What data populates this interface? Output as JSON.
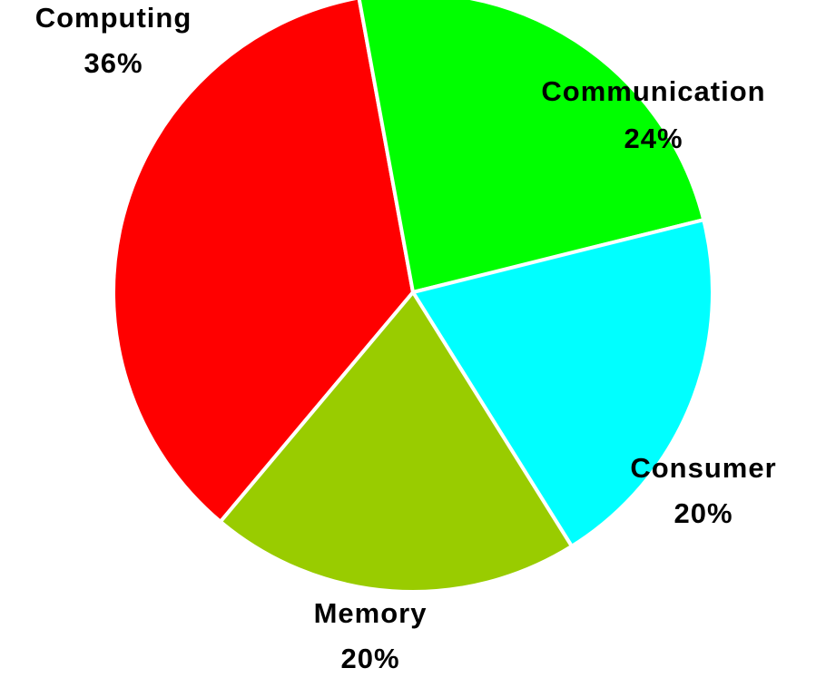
{
  "chart_data": {
    "type": "pie",
    "categories": [
      "Computing",
      "Communication",
      "Consumer",
      "Memory"
    ],
    "values": [
      36,
      24,
      20,
      20
    ],
    "value_labels": [
      "36%",
      "24%",
      "20%",
      "20%"
    ],
    "colors": [
      "#ff0000",
      "#00ff00",
      "#00ffff",
      "#99cc00"
    ]
  }
}
